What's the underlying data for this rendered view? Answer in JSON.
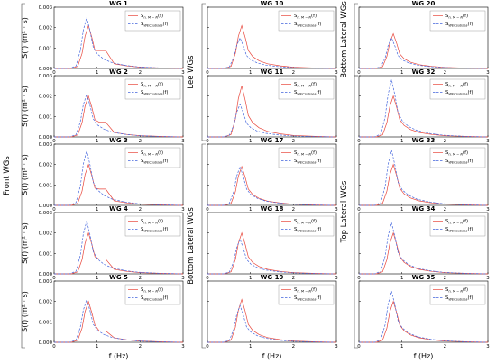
{
  "chart_data": {
    "type": "line",
    "x_unit_label": "f (Hz)",
    "y_unit_label": "S(f) (m² · s)",
    "series_legend": [
      {
        "name": "S",
        "sub": "n, M − N",
        "suffix": "(f)",
        "color": "#e8473c",
        "dash": "solid"
      },
      {
        "name": "S",
        "sub": "WECsubsea",
        "suffix": "(f)",
        "color": "#4466dd",
        "dash": "dashed"
      }
    ],
    "xlim": [
      0,
      3
    ],
    "xticks": [
      "0",
      "1",
      "2",
      "3"
    ],
    "ylim": [
      0,
      0.003
    ],
    "yticks": [
      "0.000",
      "0.001",
      "0.002",
      "0.003"
    ],
    "groups": [
      {
        "label": "Front WGs"
      },
      {
        "label": "Lee WGs"
      },
      {
        "label": "Bottom Lateral WGs"
      },
      {
        "label": "Bottom Lateral WGs"
      },
      {
        "label": "Top Lateral WGs"
      }
    ],
    "panels": [
      {
        "title": "WG  1",
        "peak_red": 0.0021,
        "peak_blue": 0.0025,
        "shoulder": 0.0011
      },
      {
        "title": "WG  2",
        "peak_red": 0.002,
        "peak_blue": 0.0021,
        "shoulder": 0.0009
      },
      {
        "title": "WG  3",
        "peak_red": 0.002,
        "peak_blue": 0.0027,
        "shoulder": 0.001
      },
      {
        "title": "WG  4",
        "peak_red": 0.002,
        "peak_blue": 0.0026,
        "shoulder": 0.0009
      },
      {
        "title": "WG  5",
        "peak_red": 0.002,
        "peak_blue": 0.0021,
        "shoulder": 0.0007
      },
      {
        "title": "WG 10",
        "peak_red": 0.0021,
        "peak_blue": 0.0015
      },
      {
        "title": "WG 11",
        "peak_red": 0.0025,
        "peak_blue": 0.0016
      },
      {
        "title": "WG 17",
        "peak_red": 0.0019,
        "peak_blue": 0.0019
      },
      {
        "title": "WG 18",
        "peak_red": 0.002,
        "peak_blue": 0.0017
      },
      {
        "title": "WG 19",
        "peak_red": 0.0021,
        "peak_blue": 0.0018
      },
      {
        "title": "WG 20",
        "peak_red": 0.0017,
        "peak_blue": 0.0015
      },
      {
        "title": "WG 32",
        "peak_red": 0.002,
        "peak_blue": 0.0028
      },
      {
        "title": "WG 33",
        "peak_red": 0.002,
        "peak_blue": 0.0027
      },
      {
        "title": "WG 34",
        "peak_red": 0.002,
        "peak_blue": 0.0025
      },
      {
        "title": "WG 35",
        "peak_red": 0.002,
        "peak_blue": 0.0025
      }
    ],
    "spectrum_shape": {
      "x": [
        0.0,
        0.4,
        0.55,
        0.65,
        0.72,
        0.8,
        0.88,
        0.95,
        1.05,
        1.2,
        1.4,
        1.7,
        2.0,
        2.5,
        3.0
      ],
      "rel": [
        0.0,
        0.0,
        0.05,
        0.35,
        0.75,
        1.0,
        0.72,
        0.42,
        0.28,
        0.18,
        0.11,
        0.06,
        0.03,
        0.01,
        0.0
      ]
    }
  }
}
